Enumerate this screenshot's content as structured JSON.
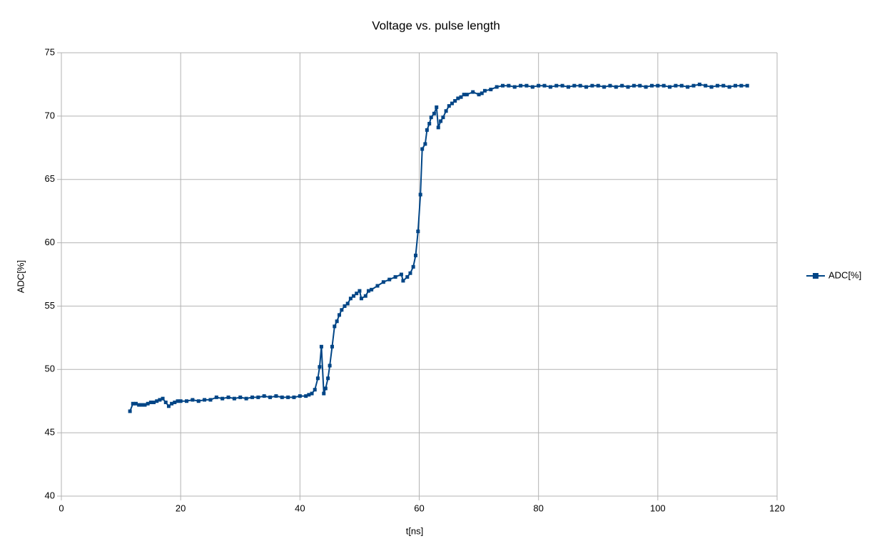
{
  "chart_data": {
    "type": "line",
    "title": "Voltage vs. pulse length",
    "x_label": "t[ns]",
    "y_label": "ADC[%]",
    "x": [
      11.5,
      12,
      12.5,
      13,
      13.5,
      14,
      14.5,
      15,
      15.5,
      16,
      16.5,
      17,
      17.5,
      18,
      18.5,
      19,
      19.5,
      20,
      21,
      22,
      23,
      24,
      25,
      26,
      27,
      28,
      29,
      30,
      31,
      32,
      33,
      34,
      35,
      36,
      37,
      38,
      39,
      40,
      41,
      41.5,
      42,
      42.5,
      43,
      43.3,
      43.6,
      44,
      44.3,
      44.7,
      45,
      45.4,
      45.8,
      46.2,
      46.6,
      47,
      47.5,
      48,
      48.5,
      49,
      49.5,
      50,
      50.3,
      51,
      51.5,
      52,
      53,
      54,
      55,
      56,
      57,
      57.3,
      58,
      58.5,
      59,
      59.4,
      59.8,
      60.2,
      60.5,
      61,
      61.3,
      61.7,
      62,
      62.5,
      62.9,
      63.2,
      63.6,
      64,
      64.5,
      65,
      65.5,
      66,
      66.5,
      67,
      67.5,
      68,
      69,
      70,
      70.5,
      71,
      72,
      73,
      74,
      75,
      76,
      77,
      78,
      79,
      80,
      81,
      82,
      83,
      84,
      85,
      86,
      87,
      88,
      89,
      90,
      91,
      92,
      93,
      94,
      95,
      96,
      97,
      98,
      99,
      100,
      101,
      102,
      103,
      104,
      105,
      106,
      107,
      108,
      109,
      110,
      111,
      112,
      113,
      114,
      115
    ],
    "series": [
      {
        "name": "ADC[%]",
        "color": "#004586",
        "values": [
          46.7,
          47.3,
          47.3,
          47.2,
          47.2,
          47.2,
          47.3,
          47.4,
          47.4,
          47.5,
          47.6,
          47.7,
          47.4,
          47.1,
          47.3,
          47.4,
          47.5,
          47.5,
          47.5,
          47.6,
          47.5,
          47.6,
          47.6,
          47.8,
          47.7,
          47.8,
          47.7,
          47.8,
          47.7,
          47.8,
          47.8,
          47.9,
          47.8,
          47.9,
          47.8,
          47.8,
          47.8,
          47.9,
          47.9,
          48.0,
          48.1,
          48.4,
          49.3,
          50.2,
          51.8,
          48.1,
          48.5,
          49.3,
          50.3,
          51.8,
          53.4,
          53.8,
          54.3,
          54.7,
          55.0,
          55.2,
          55.6,
          55.8,
          56.0,
          56.2,
          55.6,
          55.8,
          56.2,
          56.3,
          56.6,
          56.9,
          57.1,
          57.3,
          57.5,
          57.0,
          57.3,
          57.6,
          58.1,
          59.0,
          60.9,
          63.8,
          67.4,
          67.8,
          68.9,
          69.4,
          69.9,
          70.2,
          70.7,
          69.1,
          69.6,
          69.9,
          70.4,
          70.8,
          71.0,
          71.2,
          71.4,
          71.5,
          71.7,
          71.7,
          71.9,
          71.7,
          71.8,
          72.0,
          72.1,
          72.3,
          72.4,
          72.4,
          72.3,
          72.4,
          72.4,
          72.3,
          72.4,
          72.4,
          72.3,
          72.4,
          72.4,
          72.3,
          72.4,
          72.4,
          72.3,
          72.4,
          72.4,
          72.3,
          72.4,
          72.3,
          72.4,
          72.3,
          72.4,
          72.4,
          72.3,
          72.4,
          72.4,
          72.4,
          72.3,
          72.4,
          72.4,
          72.3,
          72.4,
          72.5,
          72.4,
          72.3,
          72.4,
          72.4,
          72.3,
          72.4,
          72.4,
          72.4
        ]
      }
    ],
    "xlim": [
      0,
      120
    ],
    "ylim": [
      40,
      75
    ],
    "xticks": [
      0,
      20,
      40,
      60,
      80,
      100,
      120
    ],
    "yticks": [
      40,
      45,
      50,
      55,
      60,
      65,
      70,
      75
    ],
    "grid": true,
    "marker": "square",
    "legend": "right"
  }
}
